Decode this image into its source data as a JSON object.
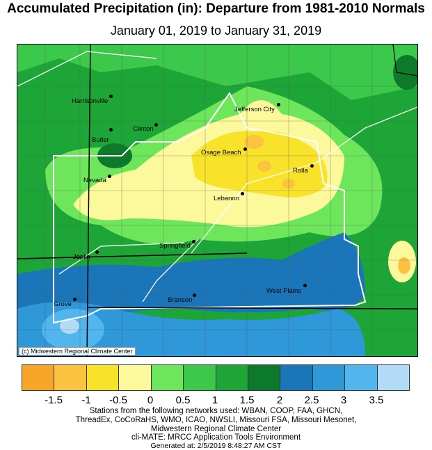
{
  "title": "Accumulated Precipitation (in): Departure from 1981-2010 Normals",
  "subtitle": "January 01, 2019 to January 31, 2019",
  "map": {
    "credit": "(c) Midwestern Regional Climate Center",
    "cities": [
      {
        "id": "harrisonville",
        "name": "Harrisonville"
      },
      {
        "id": "jefferson-city",
        "name": "Jefferson City"
      },
      {
        "id": "clinton",
        "name": "Clinton"
      },
      {
        "id": "butler",
        "name": "Butler"
      },
      {
        "id": "osage-beach",
        "name": "Osage Beach"
      },
      {
        "id": "rolla",
        "name": "Rolla"
      },
      {
        "id": "nevada",
        "name": "Nevada"
      },
      {
        "id": "lebanon",
        "name": "Lebanon"
      },
      {
        "id": "springfield",
        "name": "Springfield"
      },
      {
        "id": "joplin",
        "name": "Joplin"
      },
      {
        "id": "west-plains",
        "name": "West Plains"
      },
      {
        "id": "branson",
        "name": "Branson"
      },
      {
        "id": "grove",
        "name": "Grove"
      }
    ]
  },
  "legend": {
    "colors": [
      "#f7a62a",
      "#fbc33f",
      "#f8e32a",
      "#fbf99c",
      "#6ee65c",
      "#3cc84a",
      "#1ea537",
      "#0d7a2b",
      "#1a76b8",
      "#2e98d8",
      "#52b6ee",
      "#b3dbf7"
    ],
    "ticks": [
      "-1.5",
      "-1",
      "-0.5",
      "0",
      "0.5",
      "1",
      "1.5",
      "2",
      "2.5",
      "3",
      "3.5"
    ]
  },
  "footer": {
    "line1": "Stations from the following networks used: WBAN, COOP, FAA, GHCN,",
    "line2": "ThreadEx, CoCoRaHS, WMO, ICAO, NWSLI, Missouri FSA, Missouri Mesonet,",
    "line3": "Midwestern Regional Climate Center",
    "line4": "cli-MATE: MRCC Application Tools Environment",
    "line5": "Generated at: 2/5/2019 8:48:27 AM CST"
  }
}
